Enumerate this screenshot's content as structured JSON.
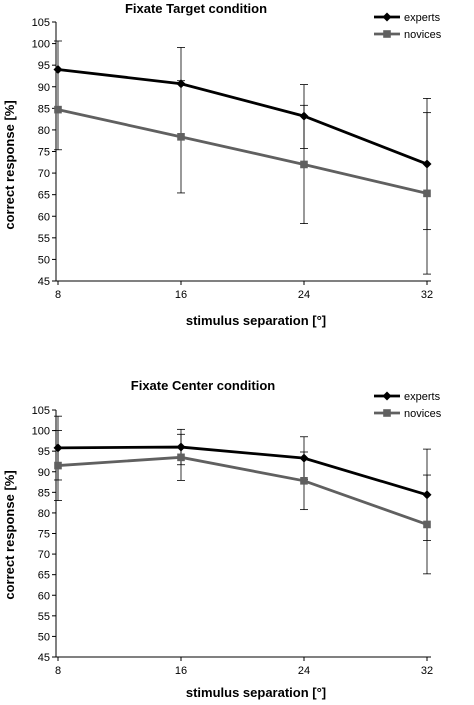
{
  "chart_data": [
    {
      "type": "line",
      "title": "Fixate Target condition",
      "xlabel": "stimulus separation [°]",
      "ylabel": "correct response [%]",
      "x": [
        8,
        16,
        24,
        32
      ],
      "ylim": [
        45,
        105
      ],
      "yticks": [
        45,
        50,
        55,
        60,
        65,
        70,
        75,
        80,
        85,
        90,
        95,
        100,
        105
      ],
      "grid": false,
      "legend": "top-right",
      "series": [
        {
          "name": "experts",
          "color": "#000000",
          "marker": "diamond",
          "values": [
            94,
            90.7,
            83.2,
            72.1
          ],
          "err_low": [
            94,
            90.7,
            75.7,
            56.9
          ],
          "err_high": [
            100.6,
            99.1,
            90.5,
            87.3
          ]
        },
        {
          "name": "novices",
          "color": "#606060",
          "marker": "square",
          "values": [
            84.7,
            78.4,
            72,
            65.3
          ],
          "err_low": [
            75.4,
            65.4,
            58.3,
            46.6
          ],
          "err_high": [
            94,
            91.4,
            85.7,
            84
          ]
        }
      ]
    },
    {
      "type": "line",
      "title": "Fixate Center condition",
      "xlabel": "stimulus separation [°]",
      "ylabel": "correct response [%]",
      "x": [
        8,
        16,
        24,
        32
      ],
      "ylim": [
        45,
        105
      ],
      "yticks": [
        45,
        50,
        55,
        60,
        65,
        70,
        75,
        80,
        85,
        90,
        95,
        100,
        105
      ],
      "grid": false,
      "legend": "top-right",
      "series": [
        {
          "name": "experts",
          "color": "#000000",
          "marker": "diamond",
          "values": [
            95.8,
            96,
            93.3,
            84.4
          ],
          "err_low": [
            88,
            91.7,
            88.1,
            73.3
          ],
          "err_high": [
            103.5,
            100.3,
            98.5,
            95.5
          ]
        },
        {
          "name": "novices",
          "color": "#606060",
          "marker": "square",
          "values": [
            91.5,
            93.5,
            87.8,
            77.2
          ],
          "err_low": [
            83,
            87.9,
            80.8,
            65.2
          ],
          "err_high": [
            100,
            99.1,
            94.8,
            89.2
          ]
        }
      ]
    }
  ]
}
